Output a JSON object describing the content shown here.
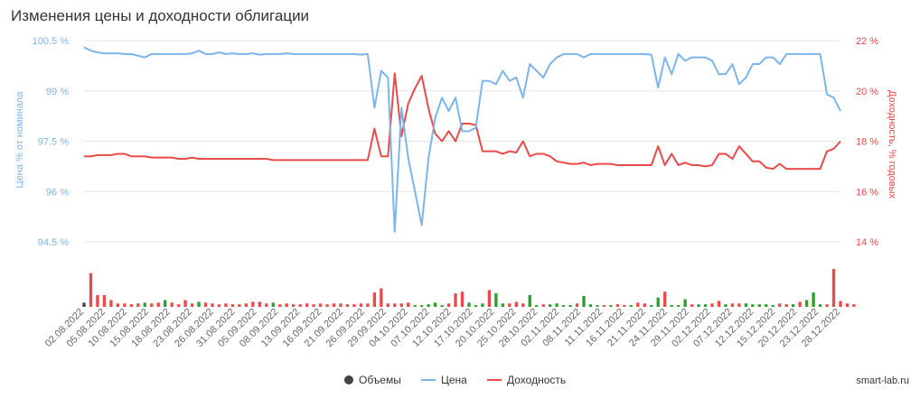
{
  "chart_data": {
    "type": "line",
    "title": "Изменения цены и доходности облигации",
    "ylabel_left": "Цена % от номинала",
    "ylabel_right": "Доходность, % годовых",
    "ylim_left": [
      94.5,
      100.5
    ],
    "ylim_right": [
      14,
      22
    ],
    "yticks_left": [
      "100.5 %",
      "99 %",
      "97.5 %",
      "96 %",
      "94.5 %"
    ],
    "yticks_right": [
      "22 %",
      "20 %",
      "18 %",
      "16 %",
      "14 %"
    ],
    "grid": true,
    "legend_position": "bottom-center",
    "credit": "smart-lab.ru",
    "x_tick_labels": [
      "02.08.2022",
      "05.08.2022",
      "10.08.2022",
      "15.08.2022",
      "18.08.2022",
      "23.08.2022",
      "26.08.2022",
      "31.08.2022",
      "05.09.2022",
      "08.09.2022",
      "13.09.2022",
      "16.09.2022",
      "21.09.2022",
      "26.09.2022",
      "29.09.2022",
      "04.10.2022",
      "07.10.2022",
      "12.10.2022",
      "17.10.2022",
      "20.10.2022",
      "25.10.2022",
      "28.10.2022",
      "02.11.2022",
      "08.11.2022",
      "11.11.2022",
      "16.11.2022",
      "21.11.2022",
      "24.11.2022",
      "29.11.2022",
      "02.12.2022",
      "07.12.2022",
      "12.12.2022",
      "15.12.2022",
      "20.12.2022",
      "23.12.2022",
      "28.12.2022"
    ],
    "legend": [
      {
        "name": "Объемы",
        "color": "#434348",
        "symbol": "circle"
      },
      {
        "name": "Цена",
        "color": "#7cb5ec",
        "symbol": "line"
      },
      {
        "name": "Доходность",
        "color": "#e94a4a",
        "symbol": "line"
      }
    ],
    "series": [
      {
        "name": "Цена",
        "axis": "left",
        "color": "#7cb5ec",
        "values": [
          100.3,
          100.2,
          100.15,
          100.12,
          100.12,
          100.12,
          100.1,
          100.1,
          100.05,
          100.0,
          100.1,
          100.1,
          100.1,
          100.1,
          100.1,
          100.1,
          100.12,
          100.2,
          100.1,
          100.1,
          100.15,
          100.1,
          100.12,
          100.1,
          100.1,
          100.12,
          100.08,
          100.1,
          100.1,
          100.1,
          100.12,
          100.1,
          100.1,
          100.1,
          100.1,
          100.1,
          100.1,
          100.1,
          100.1,
          100.1,
          100.1,
          100.08,
          100.1,
          98.5,
          99.6,
          99.4,
          94.8,
          98.5,
          97.0,
          96.0,
          95.0,
          97.0,
          98.2,
          98.8,
          98.4,
          98.8,
          97.8,
          97.8,
          97.9,
          99.3,
          99.3,
          99.2,
          99.6,
          99.3,
          99.4,
          98.8,
          99.8,
          99.6,
          99.4,
          99.8,
          100.0,
          100.1,
          100.1,
          100.1,
          100.0,
          100.1,
          100.1,
          100.1,
          100.1,
          100.1,
          100.1,
          100.1,
          100.1,
          100.1,
          100.08,
          99.1,
          100.0,
          99.5,
          100.1,
          99.9,
          100.0,
          100.0,
          100.0,
          99.9,
          99.5,
          99.5,
          99.8,
          99.2,
          99.4,
          99.8,
          99.8,
          100.0,
          100.0,
          99.8,
          100.1,
          100.1,
          100.1,
          100.1,
          100.1,
          100.1,
          98.9,
          98.8,
          98.4
        ]
      },
      {
        "name": "Доходность",
        "axis": "right",
        "color": "#e94a4a",
        "values": [
          17.4,
          17.4,
          17.45,
          17.45,
          17.45,
          17.5,
          17.5,
          17.4,
          17.4,
          17.4,
          17.35,
          17.35,
          17.35,
          17.35,
          17.3,
          17.3,
          17.35,
          17.3,
          17.3,
          17.3,
          17.3,
          17.3,
          17.3,
          17.3,
          17.3,
          17.3,
          17.3,
          17.3,
          17.25,
          17.25,
          17.25,
          17.25,
          17.25,
          17.25,
          17.25,
          17.25,
          17.25,
          17.25,
          17.25,
          17.25,
          17.25,
          17.25,
          17.25,
          18.5,
          17.4,
          17.4,
          20.7,
          18.2,
          19.5,
          20.1,
          20.6,
          19.3,
          18.3,
          18.0,
          18.4,
          18.0,
          18.7,
          18.7,
          18.65,
          17.6,
          17.6,
          17.6,
          17.5,
          17.6,
          17.55,
          18.0,
          17.4,
          17.5,
          17.5,
          17.4,
          17.2,
          17.15,
          17.1,
          17.1,
          17.15,
          17.05,
          17.1,
          17.1,
          17.1,
          17.05,
          17.05,
          17.05,
          17.05,
          17.05,
          17.05,
          17.8,
          17.05,
          17.5,
          17.05,
          17.15,
          17.05,
          17.05,
          17.0,
          17.05,
          17.5,
          17.5,
          17.3,
          17.8,
          17.5,
          17.2,
          17.2,
          16.95,
          16.9,
          17.1,
          16.9,
          16.9,
          16.9,
          16.9,
          16.9,
          16.9,
          17.6,
          17.7,
          18.0
        ]
      },
      {
        "name": "Объемы",
        "axis": "volume",
        "color": "#434348",
        "values": [
          5,
          40,
          14,
          14,
          8,
          4,
          4,
          3,
          4,
          5,
          4,
          5,
          8,
          5,
          3,
          8,
          4,
          6,
          5,
          4,
          3,
          4,
          3,
          3,
          4,
          6,
          6,
          4,
          5,
          3,
          4,
          3,
          3,
          4,
          3,
          4,
          3,
          4,
          4,
          3,
          3,
          4,
          4,
          17,
          22,
          4,
          4,
          4,
          5,
          2,
          2,
          3,
          5,
          2,
          4,
          16,
          18,
          5,
          2,
          4,
          20,
          16,
          4,
          4,
          6,
          4,
          14,
          2,
          3,
          3,
          4,
          2,
          2,
          4,
          13,
          3,
          2,
          2,
          2,
          3,
          2,
          2,
          5,
          4,
          2,
          11,
          18,
          2,
          2,
          9,
          3,
          3,
          3,
          4,
          7,
          3,
          4,
          4,
          4,
          3,
          3,
          3,
          2,
          4,
          3,
          3,
          6,
          8,
          17,
          3,
          3,
          45,
          7,
          4,
          3
        ],
        "colors": [
          "#434348",
          "#e94a4a",
          "#e94a4a",
          "#e94a4a",
          "#e94a4a",
          "#e94a4a",
          "#e94a4a",
          "#e94a4a",
          "#e94a4a",
          "#2ca02c",
          "#e94a4a",
          "#e94a4a",
          "#2ca02c",
          "#e94a4a",
          "#e94a4a",
          "#e94a4a",
          "#e94a4a",
          "#2ca02c",
          "#e94a4a",
          "#e94a4a",
          "#e94a4a",
          "#e94a4a",
          "#e94a4a",
          "#e94a4a",
          "#e94a4a",
          "#e94a4a",
          "#e94a4a",
          "#e94a4a",
          "#2ca02c",
          "#e94a4a",
          "#e94a4a",
          "#e94a4a",
          "#e94a4a",
          "#e94a4a",
          "#e94a4a",
          "#e94a4a",
          "#e94a4a",
          "#e94a4a",
          "#e94a4a",
          "#e94a4a",
          "#e94a4a",
          "#e94a4a",
          "#e94a4a",
          "#e94a4a",
          "#e94a4a",
          "#e94a4a",
          "#e94a4a",
          "#e94a4a",
          "#e94a4a",
          "#2ca02c",
          "#2ca02c",
          "#2ca02c",
          "#2ca02c",
          "#2ca02c",
          "#e94a4a",
          "#e94a4a",
          "#e94a4a",
          "#2ca02c",
          "#2ca02c",
          "#2ca02c",
          "#e94a4a",
          "#2ca02c",
          "#2ca02c",
          "#e94a4a",
          "#e94a4a",
          "#e94a4a",
          "#2ca02c",
          "#2ca02c",
          "#e94a4a",
          "#2ca02c",
          "#2ca02c",
          "#2ca02c",
          "#2ca02c",
          "#e94a4a",
          "#2ca02c",
          "#2ca02c",
          "#2ca02c",
          "#e94a4a",
          "#2ca02c",
          "#e94a4a",
          "#e94a4a",
          "#2ca02c",
          "#e94a4a",
          "#e94a4a",
          "#2ca02c",
          "#2ca02c",
          "#e94a4a",
          "#2ca02c",
          "#2ca02c",
          "#2ca02c",
          "#e94a4a",
          "#2ca02c",
          "#2ca02c",
          "#e94a4a",
          "#e94a4a",
          "#2ca02c",
          "#e94a4a",
          "#e94a4a",
          "#2ca02c",
          "#2ca02c",
          "#2ca02c",
          "#2ca02c",
          "#2ca02c",
          "#e94a4a",
          "#e94a4a",
          "#2ca02c",
          "#e94a4a",
          "#2ca02c",
          "#2ca02c",
          "#2ca02c",
          "#e94a4a",
          "#e94a4a",
          "#e94a4a",
          "#e94a4a",
          "#e94a4a"
        ]
      }
    ]
  }
}
